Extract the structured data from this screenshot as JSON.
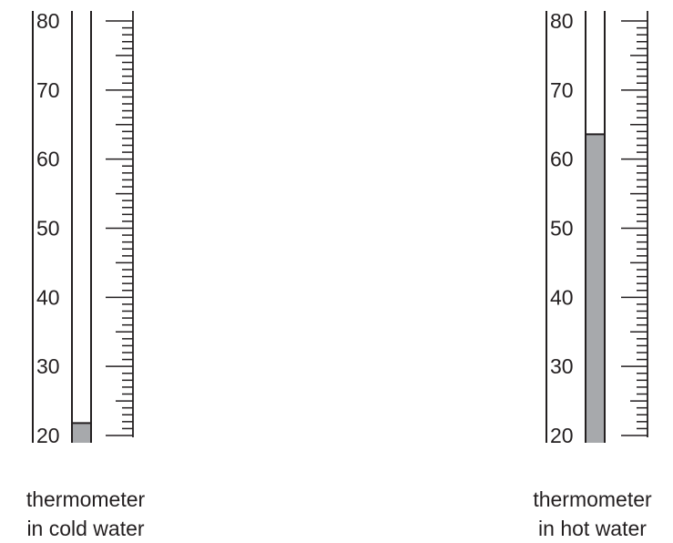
{
  "scale": {
    "min": 20,
    "max": 80,
    "labels": [
      "20",
      "30",
      "40",
      "50",
      "60",
      "70",
      "80"
    ],
    "minor_step": 1,
    "major_step": 10
  },
  "colors": {
    "ink": "#231f20",
    "liquid": "#a7a9ac",
    "tube": "#ffffff"
  },
  "thermometers": [
    {
      "id": "cold",
      "reading": 21.8,
      "caption_line1": "thermometer",
      "caption_line2": "in cold water"
    },
    {
      "id": "hot",
      "reading": 63.6,
      "caption_line1": "thermometer",
      "caption_line2": "in hot water"
    }
  ]
}
